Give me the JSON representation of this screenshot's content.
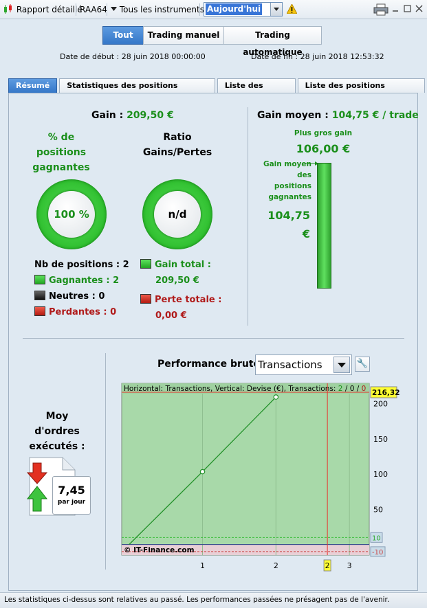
{
  "toolbar": {
    "report_label": "Rapport détaillé",
    "account": "RAA64",
    "instruments": "Tous les instruments",
    "period": "Aujourd'hui"
  },
  "filter_tabs": [
    "Tout",
    "Trading manuel",
    "Trading automatique"
  ],
  "dates": {
    "start_label": "Date de début :",
    "start_value": "28 juin 2018 00:00:00",
    "end_label": "Date de fin :",
    "end_value": "28 juin 2018 12:53:32"
  },
  "tabs": [
    "Résumé",
    "Statistiques des positions clôturées",
    "Liste des ordres",
    "Liste des positions clôturées"
  ],
  "summary": {
    "gain_label": "Gain :",
    "gain_value": "209,50 €",
    "pct_label_1": "% de",
    "pct_label_2": "positions",
    "pct_label_3": "gagnantes",
    "pct_value": "100 %",
    "pct_fraction": 1.0,
    "ratio_label_1": "Ratio",
    "ratio_label_2": "Gains/Pertes",
    "ratio_value": "n/d",
    "nb_positions_label": "Nb de positions :",
    "nb_positions_value": "2",
    "winners_label": "Gagnantes :",
    "winners_value": "2",
    "neutral_label": "Neutres :",
    "neutral_value": "0",
    "losers_label": "Perdantes :",
    "losers_value": "0",
    "total_gain_label": "Gain total :",
    "total_gain_value": "209,50 €",
    "total_loss_label": "Perte totale :",
    "total_loss_value": "0,00 €"
  },
  "avg": {
    "label": "Gain moyen :",
    "value": "104,75 € / trade",
    "biggest_label": "Plus gros gain",
    "biggest_value": "106,00 €",
    "avg_win_label_1": "Gain moyen",
    "avg_win_label_2": "des",
    "avg_win_label_3": "positions",
    "avg_win_label_4": "gagnantes",
    "avg_win_value_1": "104,75",
    "avg_win_value_2": "€"
  },
  "orders": {
    "label_1": "Moy",
    "label_2": "d'ordres",
    "label_3": "exécutés :",
    "value": "7,45",
    "unit": "par jour"
  },
  "performance": {
    "label": "Performance brute",
    "mode": "Transactions"
  },
  "chart_data": {
    "type": "line",
    "header_text": "Horizontal: Transactions, Vertical: Devise (€), Transactions:",
    "header_counts": [
      "2",
      "0",
      "0"
    ],
    "x": [
      0,
      1,
      2
    ],
    "values": [
      0,
      103.5,
      209.5
    ],
    "xlim": [
      -0.1,
      3.27
    ],
    "ylim": [
      -15,
      229
    ],
    "x_ticks": [
      "1",
      "2",
      "3"
    ],
    "x_tick_values": [
      1,
      2,
      3
    ],
    "y_ticks": [
      "50",
      "100",
      "150",
      "200"
    ],
    "y_tick_values": [
      50,
      100,
      150,
      200
    ],
    "top_marker": "216,32",
    "top_marker_value": 216.32,
    "upper_band_label": "10",
    "upper_band_value": 10,
    "lower_band_label": "-10",
    "lower_band_value": -10,
    "current_x_label": "2",
    "current_x_value": 2.7,
    "watermark": "© IT-Finance.com",
    "colors": {
      "area": "#a8d9a9",
      "line": "#23912a",
      "marker": "#e8322b"
    }
  },
  "status": "Les statistiques ci-dessus sont relatives au passé. Les performances passées ne présagent pas de l'avenir."
}
